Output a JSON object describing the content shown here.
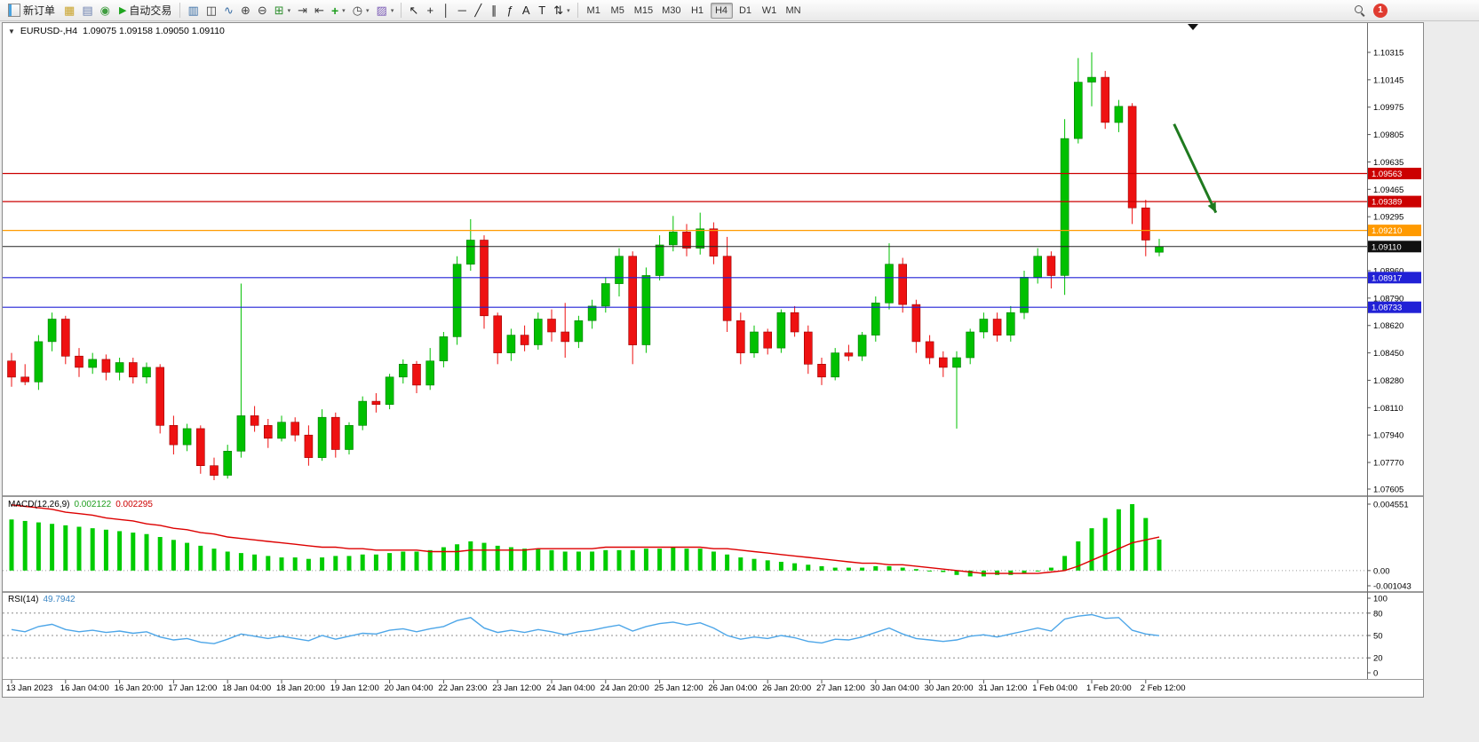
{
  "toolbar": {
    "new_order_label": "新订单",
    "autotrading_label": "自动交易",
    "timeframes": [
      "M1",
      "M5",
      "M15",
      "M30",
      "H1",
      "H4",
      "D1",
      "W1",
      "MN"
    ],
    "active_timeframe": "H4",
    "notification_count": "1",
    "icons": {
      "play": "▶",
      "dropdown": "▾",
      "chart_menu": "▼"
    },
    "std_icons": [
      {
        "name": "new-chart-icon",
        "glyph": "▦",
        "color": "#c9a227"
      },
      {
        "name": "profiles-icon",
        "glyph": "▤",
        "color": "#6a7fae"
      },
      {
        "name": "refresh-icon",
        "glyph": "◉",
        "color": "#3f9d3f"
      }
    ],
    "chart_icons": [
      {
        "name": "bar-chart-icon",
        "glyph": "▥",
        "color": "#3a6ea5"
      },
      {
        "name": "candlestick-chart-icon",
        "glyph": "◫",
        "color": "#333333"
      },
      {
        "name": "line-chart-icon",
        "glyph": "∿",
        "color": "#3a6ea5"
      },
      {
        "name": "zoom-in-icon",
        "glyph": "⊕",
        "color": "#444444"
      },
      {
        "name": "zoom-out-icon",
        "glyph": "⊖",
        "color": "#444444"
      },
      {
        "name": "tile-windows-icon",
        "glyph": "⊞",
        "color": "#2f8f2f",
        "dd": true
      },
      {
        "name": "auto-scroll-icon",
        "glyph": "⇥",
        "color": "#444444"
      },
      {
        "name": "chart-shift-icon",
        "glyph": "⇤",
        "color": "#444444"
      },
      {
        "name": "indicators-icon",
        "glyph": "+",
        "color": "#1f9e1f",
        "dd": true,
        "bold": true
      },
      {
        "name": "periods-icon",
        "glyph": "◷",
        "color": "#444444",
        "dd": true
      },
      {
        "name": "templates-icon",
        "glyph": "▨",
        "color": "#7a5ab5",
        "dd": true
      }
    ],
    "draw_icons": [
      {
        "name": "cursor-icon",
        "glyph": "↖",
        "color": "#222222"
      },
      {
        "name": "crosshair-icon",
        "glyph": "+",
        "color": "#222222"
      },
      {
        "name": "vertical-line-icon",
        "glyph": "│",
        "color": "#222222"
      },
      {
        "name": "horizontal-line-icon",
        "glyph": "─",
        "color": "#222222"
      },
      {
        "name": "trendline-icon",
        "glyph": "╱",
        "color": "#222222"
      },
      {
        "name": "equidistant-channel-icon",
        "glyph": "∥",
        "color": "#222222"
      },
      {
        "name": "fibonacci-icon",
        "glyph": "ƒ",
        "color": "#222222"
      },
      {
        "name": "text-icon",
        "glyph": "A",
        "color": "#222222"
      },
      {
        "name": "label-icon",
        "glyph": "T",
        "color": "#222222"
      },
      {
        "name": "arrows-icon",
        "glyph": "⇅",
        "color": "#222222",
        "dd": true
      }
    ]
  },
  "chart": {
    "title": "EURUSD-,H4",
    "ohlc": "1.09075 1.09158 1.09050 1.09110"
  },
  "chart_data": {
    "type": "candlestick",
    "title": "EURUSD-,H4",
    "symbol": "EURUSD-",
    "timeframe": "H4",
    "ylim": [
      1.07605,
      1.10315
    ],
    "grid": false,
    "price_axis_labels": [
      "1.10315",
      "1.10145",
      "1.09975",
      "1.09805",
      "1.09635",
      "1.09465",
      "1.09295",
      "1.08960",
      "1.08790",
      "1.08620",
      "1.08450",
      "1.08280",
      "1.08110",
      "1.07940",
      "1.07770",
      "1.07605"
    ],
    "candles": [
      [
        1.084,
        1.0845,
        1.0824,
        1.083
      ],
      [
        1.083,
        1.0838,
        1.0825,
        1.0827
      ],
      [
        1.0827,
        1.0856,
        1.0822,
        1.0852
      ],
      [
        1.0852,
        1.087,
        1.0846,
        1.0866
      ],
      [
        1.0866,
        1.0868,
        1.0838,
        1.0843
      ],
      [
        1.0843,
        1.0848,
        1.083,
        1.0836
      ],
      [
        1.0836,
        1.0845,
        1.0832,
        1.0841
      ],
      [
        1.0841,
        1.0844,
        1.0828,
        1.0833
      ],
      [
        1.0833,
        1.0842,
        1.0828,
        1.0839
      ],
      [
        1.0839,
        1.0842,
        1.0826,
        1.083
      ],
      [
        1.083,
        1.0839,
        1.0826,
        1.0836
      ],
      [
        1.0836,
        1.0838,
        1.0795,
        1.08
      ],
      [
        1.08,
        1.0806,
        1.0782,
        1.0788
      ],
      [
        1.0788,
        1.0801,
        1.0784,
        1.0798
      ],
      [
        1.0798,
        1.08,
        1.077,
        1.0775
      ],
      [
        1.0775,
        1.078,
        1.0766,
        1.0769
      ],
      [
        1.0769,
        1.0788,
        1.0767,
        1.0784
      ],
      [
        1.0784,
        1.0888,
        1.078,
        1.0806
      ],
      [
        1.0806,
        1.0812,
        1.0796,
        1.08
      ],
      [
        1.08,
        1.0804,
        1.0786,
        1.0792
      ],
      [
        1.0792,
        1.0806,
        1.079,
        1.0802
      ],
      [
        1.0802,
        1.0805,
        1.079,
        1.0794
      ],
      [
        1.0794,
        1.08,
        1.0775,
        1.078
      ],
      [
        1.078,
        1.081,
        1.0778,
        1.0805
      ],
      [
        1.0805,
        1.0808,
        1.078,
        1.0785
      ],
      [
        1.0785,
        1.0802,
        1.0782,
        1.08
      ],
      [
        1.08,
        1.0818,
        1.0797,
        1.0815
      ],
      [
        1.0815,
        1.082,
        1.0808,
        1.0813
      ],
      [
        1.0813,
        1.0832,
        1.081,
        1.083
      ],
      [
        1.083,
        1.0841,
        1.0826,
        1.0838
      ],
      [
        1.0838,
        1.084,
        1.082,
        1.0825
      ],
      [
        1.0825,
        1.0848,
        1.0822,
        1.084
      ],
      [
        1.084,
        1.0858,
        1.0836,
        1.0855
      ],
      [
        1.0855,
        1.0905,
        1.085,
        1.09
      ],
      [
        1.09,
        1.0928,
        1.0896,
        1.0915
      ],
      [
        1.0915,
        1.0918,
        1.086,
        1.0868
      ],
      [
        1.0868,
        1.087,
        1.0838,
        1.0845
      ],
      [
        1.0845,
        1.086,
        1.084,
        1.0856
      ],
      [
        1.0856,
        1.0862,
        1.0846,
        1.085
      ],
      [
        1.085,
        1.087,
        1.0847,
        1.0866
      ],
      [
        1.0866,
        1.0872,
        1.0852,
        1.0858
      ],
      [
        1.0858,
        1.0876,
        1.0842,
        1.0852
      ],
      [
        1.0852,
        1.0868,
        1.0848,
        1.0865
      ],
      [
        1.0865,
        1.0878,
        1.086,
        1.0874
      ],
      [
        1.0874,
        1.0892,
        1.087,
        1.0888
      ],
      [
        1.0888,
        1.091,
        1.088,
        1.0905
      ],
      [
        1.0905,
        1.0908,
        1.0838,
        1.085
      ],
      [
        1.085,
        1.0898,
        1.0845,
        1.0893
      ],
      [
        1.0893,
        1.0918,
        1.089,
        1.0912
      ],
      [
        1.0912,
        1.093,
        1.0908,
        1.092
      ],
      [
        1.092,
        1.0925,
        1.0905,
        1.091
      ],
      [
        1.091,
        1.0932,
        1.0906,
        1.0922
      ],
      [
        1.0922,
        1.0926,
        1.09,
        1.0905
      ],
      [
        1.0905,
        1.0917,
        1.0858,
        1.0865
      ],
      [
        1.0865,
        1.087,
        1.0838,
        1.0845
      ],
      [
        1.0845,
        1.0862,
        1.0842,
        1.0858
      ],
      [
        1.0858,
        1.086,
        1.0844,
        1.0848
      ],
      [
        1.0848,
        1.0872,
        1.0845,
        1.087
      ],
      [
        1.087,
        1.0874,
        1.0855,
        1.0858
      ],
      [
        1.0858,
        1.0862,
        1.0832,
        1.0838
      ],
      [
        1.0838,
        1.0842,
        1.0825,
        1.083
      ],
      [
        1.083,
        1.0848,
        1.0828,
        1.0845
      ],
      [
        1.0845,
        1.085,
        1.084,
        1.0843
      ],
      [
        1.0843,
        1.0858,
        1.084,
        1.0856
      ],
      [
        1.0856,
        1.088,
        1.0852,
        1.0876
      ],
      [
        1.0876,
        1.0913,
        1.0872,
        1.09
      ],
      [
        1.09,
        1.0904,
        1.087,
        1.0875
      ],
      [
        1.0875,
        1.0878,
        1.0845,
        1.0852
      ],
      [
        1.0852,
        1.0856,
        1.0838,
        1.0842
      ],
      [
        1.0842,
        1.0846,
        1.083,
        1.0836
      ],
      [
        1.0836,
        1.0846,
        1.0798,
        1.0842
      ],
      [
        1.0842,
        1.086,
        1.0838,
        1.0858
      ],
      [
        1.0858,
        1.087,
        1.0854,
        1.0866
      ],
      [
        1.0866,
        1.087,
        1.0852,
        1.0856
      ],
      [
        1.0856,
        1.0874,
        1.0852,
        1.087
      ],
      [
        1.087,
        1.0896,
        1.0866,
        1.0892
      ],
      [
        1.0892,
        1.091,
        1.0888,
        1.0905
      ],
      [
        1.0905,
        1.0908,
        1.0885,
        1.0893
      ],
      [
        1.0893,
        1.099,
        1.0881,
        1.0978
      ],
      [
        1.0978,
        1.1028,
        1.0975,
        1.1013
      ],
      [
        1.1013,
        1.10315,
        1.0998,
        1.1016
      ],
      [
        1.1016,
        1.102,
        1.0984,
        1.0988
      ],
      [
        1.0988,
        1.1002,
        1.0982,
        1.0998
      ],
      [
        1.0998,
        1.1,
        1.0925,
        1.0935
      ],
      [
        1.0935,
        1.094,
        1.0905,
        1.0915
      ],
      [
        1.09075,
        1.09158,
        1.0905,
        1.0911
      ]
    ],
    "time_labels": [
      {
        "i": 0,
        "t": "13 Jan 2023"
      },
      {
        "i": 4,
        "t": "16 Jan 04:00"
      },
      {
        "i": 8,
        "t": "16 Jan 20:00"
      },
      {
        "i": 12,
        "t": "17 Jan 12:00"
      },
      {
        "i": 16,
        "t": "18 Jan 04:00"
      },
      {
        "i": 20,
        "t": "18 Jan 20:00"
      },
      {
        "i": 24,
        "t": "19 Jan 12:00"
      },
      {
        "i": 28,
        "t": "20 Jan 04:00"
      },
      {
        "i": 32,
        "t": "22 Jan 23:00"
      },
      {
        "i": 36,
        "t": "23 Jan 12:00"
      },
      {
        "i": 40,
        "t": "24 Jan 04:00"
      },
      {
        "i": 44,
        "t": "24 Jan 20:00"
      },
      {
        "i": 48,
        "t": "25 Jan 12:00"
      },
      {
        "i": 52,
        "t": "26 Jan 04:00"
      },
      {
        "i": 56,
        "t": "26 Jan 20:00"
      },
      {
        "i": 60,
        "t": "27 Jan 12:00"
      },
      {
        "i": 64,
        "t": "30 Jan 04:00"
      },
      {
        "i": 68,
        "t": "30 Jan 20:00"
      },
      {
        "i": 72,
        "t": "31 Jan 12:00"
      },
      {
        "i": 76,
        "t": "1 Feb 04:00"
      },
      {
        "i": 80,
        "t": "1 Feb 20:00"
      },
      {
        "i": 84,
        "t": "2 Feb 12:00"
      }
    ],
    "hlines": [
      {
        "price": 1.09563,
        "label": "1.09563",
        "color": "#cc0000"
      },
      {
        "price": 1.09389,
        "label": "1.09389",
        "color": "#cc0000"
      },
      {
        "price": 1.0921,
        "label": "1.09210",
        "color": "#ff9a00"
      },
      {
        "price": 1.08917,
        "label": "1.08917",
        "color": "#2121d6"
      },
      {
        "price": 1.08733,
        "label": "1.08733",
        "color": "#2121d6"
      }
    ],
    "current_price": {
      "price": 1.0911,
      "label": "1.09110",
      "line_color": "#222222",
      "badge_color": "#101010"
    },
    "macd": {
      "label": "MACD(12,26,9)",
      "value_main": "0.002122",
      "value_signal": "0.002295",
      "ylim": [
        -0.001043,
        0.004551
      ],
      "axis_labels": [
        "0.004551",
        "0.00",
        "-0.001043"
      ],
      "hist": [
        0.0035,
        0.0034,
        0.0033,
        0.0032,
        0.0031,
        0.003,
        0.0029,
        0.0028,
        0.0027,
        0.0026,
        0.0025,
        0.0023,
        0.0021,
        0.0019,
        0.0017,
        0.0015,
        0.0013,
        0.0012,
        0.0011,
        0.001,
        0.0009,
        0.0009,
        0.0008,
        0.0009,
        0.001,
        0.001,
        0.0011,
        0.0011,
        0.0012,
        0.0013,
        0.0013,
        0.0014,
        0.0016,
        0.0018,
        0.002,
        0.0019,
        0.0017,
        0.0016,
        0.0015,
        0.0015,
        0.0014,
        0.0013,
        0.0013,
        0.0013,
        0.0014,
        0.0014,
        0.0014,
        0.0015,
        0.0015,
        0.0016,
        0.0015,
        0.0015,
        0.0013,
        0.0011,
        0.0009,
        0.0008,
        0.0007,
        0.0006,
        0.0005,
        0.0004,
        0.0003,
        0.0002,
        0.0002,
        0.0002,
        0.0003,
        0.0003,
        0.0002,
        0.0001,
        0.0,
        -0.0001,
        -0.0003,
        -0.0004,
        -0.0004,
        -0.0003,
        -0.0003,
        -0.0002,
        0.0,
        0.0002,
        0.001,
        0.002,
        0.0029,
        0.0036,
        0.0042,
        0.00455,
        0.0036,
        0.002122
      ],
      "signal": [
        0.0045,
        0.0044,
        0.0043,
        0.0042,
        0.004,
        0.0039,
        0.0038,
        0.0036,
        0.0035,
        0.0034,
        0.0032,
        0.0031,
        0.0029,
        0.0028,
        0.0026,
        0.0025,
        0.0023,
        0.0022,
        0.0021,
        0.002,
        0.0019,
        0.0018,
        0.0017,
        0.0016,
        0.0016,
        0.0015,
        0.0015,
        0.0014,
        0.0014,
        0.0014,
        0.0014,
        0.0013,
        0.0013,
        0.0013,
        0.0014,
        0.0014,
        0.0014,
        0.0014,
        0.0014,
        0.0015,
        0.0015,
        0.0015,
        0.0015,
        0.0015,
        0.0016,
        0.0016,
        0.0016,
        0.0016,
        0.0016,
        0.0016,
        0.0016,
        0.0016,
        0.0015,
        0.0015,
        0.0014,
        0.0013,
        0.0012,
        0.0011,
        0.001,
        0.0009,
        0.0008,
        0.0007,
        0.0006,
        0.0005,
        0.0005,
        0.0004,
        0.0004,
        0.0003,
        0.0002,
        0.0001,
        0.0,
        -0.0001,
        -0.0002,
        -0.0002,
        -0.0002,
        -0.0002,
        -0.0002,
        -0.0001,
        0.0,
        0.0003,
        0.0007,
        0.0011,
        0.0015,
        0.0019,
        0.0021,
        0.002295
      ]
    },
    "rsi": {
      "label": "RSI(14)",
      "value": "49.7942",
      "ylim": [
        0,
        100
      ],
      "levels": [
        80,
        50,
        20
      ],
      "axis_labels": [
        "100",
        "80",
        "50",
        "20",
        "0"
      ],
      "values": [
        58,
        55,
        62,
        65,
        58,
        55,
        57,
        54,
        56,
        53,
        55,
        48,
        44,
        46,
        41,
        39,
        45,
        52,
        49,
        46,
        49,
        46,
        43,
        50,
        45,
        49,
        53,
        52,
        57,
        59,
        55,
        59,
        62,
        70,
        74,
        60,
        54,
        57,
        54,
        58,
        55,
        51,
        55,
        57,
        61,
        64,
        56,
        62,
        66,
        68,
        64,
        67,
        60,
        50,
        45,
        48,
        46,
        50,
        47,
        42,
        40,
        45,
        44,
        48,
        54,
        60,
        52,
        46,
        44,
        42,
        44,
        49,
        51,
        48,
        52,
        56,
        60,
        56,
        72,
        76,
        78,
        73,
        74,
        57,
        52,
        49.7942
      ]
    },
    "annotations": {
      "arrow": {
        "from_index": 86.1,
        "from_price": 1.0987,
        "to_index": 89.2,
        "to_price": 1.0932,
        "color": "#1f7a1f"
      },
      "shift_marker_index": 87.5
    },
    "colors": {
      "up": "#00c000",
      "up_edge": "#007a00",
      "down": "#ee1111",
      "down_edge": "#990000",
      "macd_hist": "#00cc00",
      "macd_signal": "#dd0000",
      "rsi": "#4da6e8"
    }
  }
}
